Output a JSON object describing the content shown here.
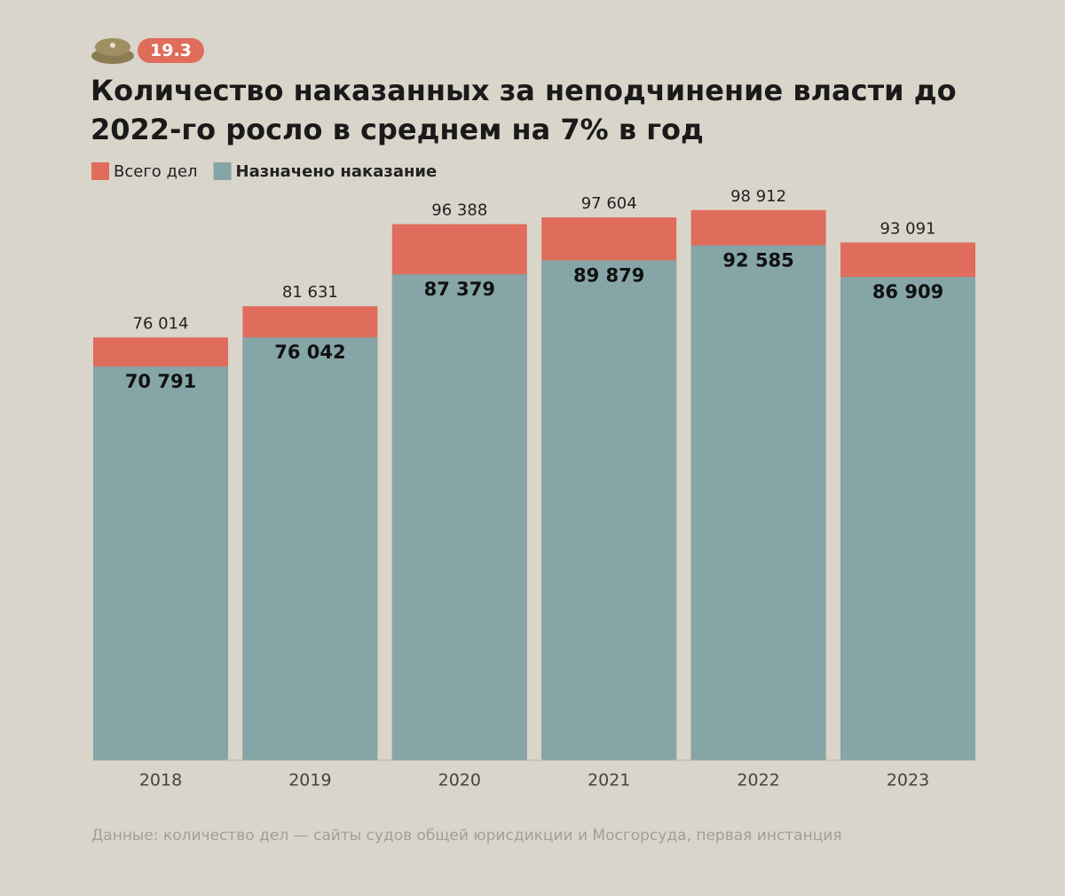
{
  "chart_data": {
    "type": "overlap_bar",
    "badge": "19.3",
    "title": "Количество наказанных за неподчинение власти до 2022-го росло в среднем на 7% в год",
    "categories": [
      "2018",
      "2019",
      "2020",
      "2021",
      "2022",
      "2023"
    ],
    "series": [
      {
        "name": "Всего дел",
        "color": "#e06d5b",
        "values": [
          76014,
          81631,
          96388,
          97604,
          98912,
          93091
        ],
        "value_labels": [
          "76 014",
          "81 631",
          "96 388",
          "97 604",
          "98 912",
          "93 091"
        ]
      },
      {
        "name": "Назначено наказание",
        "color": "#86a5a7",
        "values": [
          70791,
          76042,
          87379,
          89879,
          92585,
          86909
        ],
        "value_labels": [
          "70 791",
          "76 042",
          "87 379",
          "89 879",
          "92 585",
          "86 909"
        ]
      }
    ],
    "ylim": [
      0,
      100000
    ],
    "source": "Данные: количество дел — сайты судов общей юрисдикции и Мосгорсуда, первая инстанция"
  }
}
